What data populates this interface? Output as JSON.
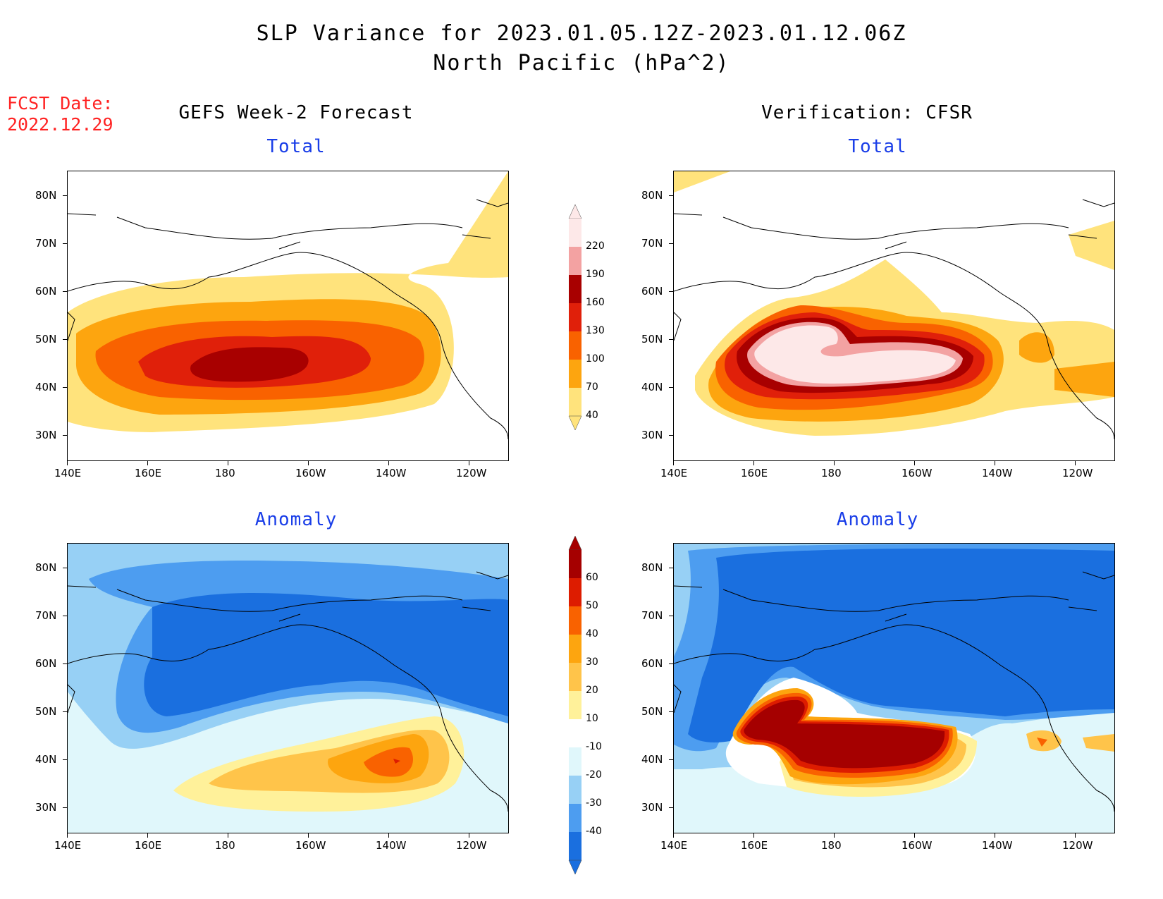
{
  "title_line1": "SLP Variance for 2023.01.05.12Z-2023.01.12.06Z",
  "title_line2": "North Pacific (hPa^2)",
  "fcst_label": "FCST Date:",
  "fcst_date": "2022.12.29",
  "left_column_title": "GEFS Week-2 Forecast",
  "right_column_title": "Verification: CFSR",
  "panels": {
    "forecast_total": {
      "subtitle": "Total"
    },
    "forecast_anomaly": {
      "subtitle": "Anomaly"
    },
    "verification_total": {
      "subtitle": "Total"
    },
    "verification_anomaly": {
      "subtitle": "Anomaly"
    }
  },
  "axes": {
    "lat_ticks": [
      "80N",
      "70N",
      "60N",
      "50N",
      "40N",
      "30N"
    ],
    "lon_ticks": [
      "140E",
      "160E",
      "180",
      "160W",
      "140W",
      "120W"
    ]
  },
  "colorbars": {
    "total": {
      "labels": [
        "220",
        "190",
        "160",
        "130",
        "100",
        "70",
        "40"
      ],
      "colors": [
        "#fde8e8",
        "#f3a2a2",
        "#a80000",
        "#e0200a",
        "#f96200",
        "#fda50f",
        "#ffe37c"
      ]
    },
    "anomaly": {
      "labels": [
        "60",
        "50",
        "40",
        "30",
        "20",
        "10",
        "-10",
        "-20",
        "-30",
        "-40"
      ],
      "colors": [
        "#a50000",
        "#dd1c00",
        "#f96200",
        "#fda50f",
        "#ffc44a",
        "#fff19a",
        "#ffffff",
        "#e0f7fb",
        "#97d0f5",
        "#4d9df0",
        "#1a6fdf"
      ]
    }
  }
}
